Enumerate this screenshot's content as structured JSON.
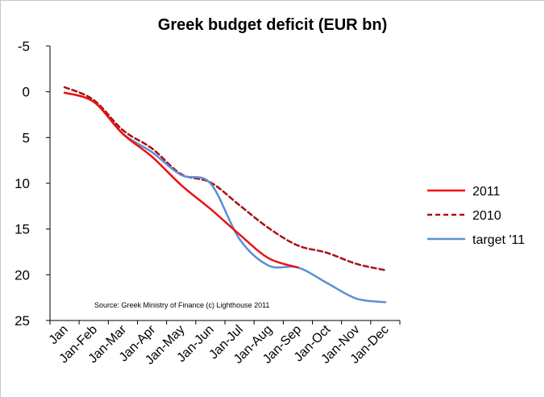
{
  "chart_data": {
    "type": "line",
    "title": "Greek budget deficit (EUR bn)",
    "categories": [
      "Jan",
      "Jan-Feb",
      "Jan-Mar",
      "Jan-Apr",
      "Jan-May",
      "Jan-Jun",
      "Jan-Jul",
      "Jan-Aug",
      "Jan-Sep",
      "Jan-Oct",
      "Jan-Nov",
      "Jan-Dec"
    ],
    "y_ticks": [
      -5,
      0,
      5,
      10,
      15,
      20,
      25
    ],
    "ylim": [
      -5,
      25
    ],
    "y_inverted": true,
    "grid": false,
    "legend_position": "right",
    "annotation": "Source: Greek Ministry of Finance (c) Lighthouse 2011",
    "series": [
      {
        "name": "2011",
        "color": "#ee1111",
        "style": "solid",
        "values": [
          0.1,
          1.1,
          4.6,
          7.1,
          10.2,
          12.8,
          15.6,
          18.2,
          19.2,
          null,
          null,
          null
        ]
      },
      {
        "name": "2010",
        "color": "#aa1111",
        "style": "dashed",
        "values": [
          -0.5,
          0.9,
          4.2,
          6.2,
          9.0,
          9.9,
          12.4,
          14.9,
          16.8,
          17.6,
          18.8,
          19.5
        ]
      },
      {
        "name": "target '11",
        "color": "#5b8fd6",
        "style": "solid",
        "values": [
          0.1,
          1.1,
          4.6,
          6.6,
          9.1,
          10.0,
          16.1,
          19.0,
          19.2,
          20.9,
          22.6,
          23.0
        ]
      }
    ]
  }
}
